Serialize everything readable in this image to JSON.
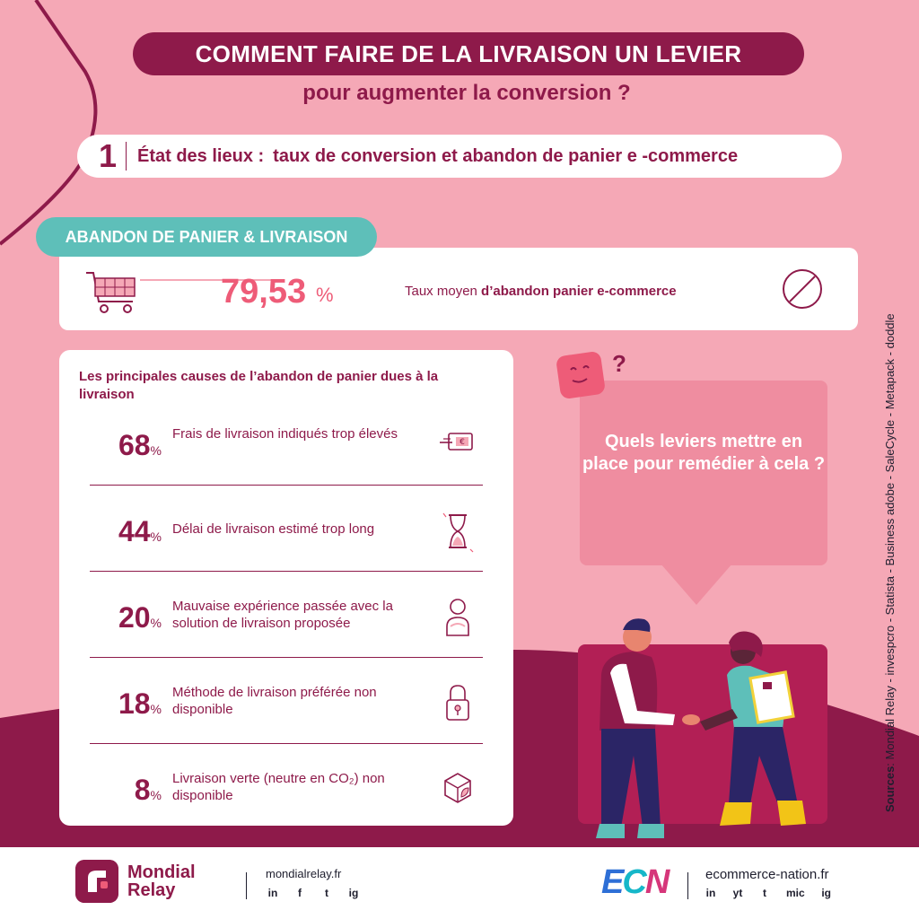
{
  "title": "COMMENT FAIRE DE LA LIVRAISON UN LEVIER",
  "subtitle": "pour augmenter la conversion ?",
  "section": {
    "number": "1",
    "heading": "État des lieux :",
    "text": "taux de conversion et abandon de panier e -commerce"
  },
  "abandon": {
    "badge": "ABANDON DE PANIER & LIVRAISON",
    "value": "79,53",
    "unit": "%",
    "label_prefix": "Taux moyen ",
    "label_bold": "d’abandon panier e-commerce"
  },
  "causes": {
    "title": "Les principales causes de l’abandon de panier dues à la livraison",
    "items": [
      {
        "value": "68",
        "unit": "%",
        "label": "Frais de livraison indiqués trop élevés",
        "icon": "euro-bill-icon"
      },
      {
        "value": "44",
        "unit": "%",
        "label": "Délai de livraison estimé trop long",
        "icon": "hourglass-icon"
      },
      {
        "value": "20",
        "unit": "%",
        "label": "Mauvaise expérience passée avec la solution de livraison proposée",
        "icon": "user-icon"
      },
      {
        "value": "18",
        "unit": "%",
        "label": "Méthode de livraison préférée non disponible",
        "icon": "padlock-icon"
      },
      {
        "value": "8",
        "unit": "%",
        "label": "Livraison verte (neutre en CO₂) non disponible",
        "icon": "eco-box-icon"
      }
    ]
  },
  "bubble": {
    "text": "Quels leviers mettre en place pour remédier à cela ?"
  },
  "robot_mark": "?",
  "sources": {
    "label": "Sources",
    "text": ": Mondial Relay   -   invespcro   -   Statista   -   Business adobe   -   SaleCycle   -   Metapack   -   doddle"
  },
  "footer": {
    "mondial_relay": {
      "name": "Mondial Relay",
      "site": "mondialrelay.fr",
      "socials": [
        "in",
        "f",
        "t",
        "ig"
      ]
    },
    "ecn": {
      "logo": "ECN",
      "site": "ecommerce-nation.fr",
      "socials": [
        "in",
        "yt",
        "t",
        "mic",
        "ig"
      ]
    }
  },
  "colors": {
    "plum": "#8e1a4a",
    "pink_bg": "#f5a8b6",
    "teal": "#5ebfb9",
    "accent": "#ee5c78",
    "bubble": "#ef8da0"
  }
}
